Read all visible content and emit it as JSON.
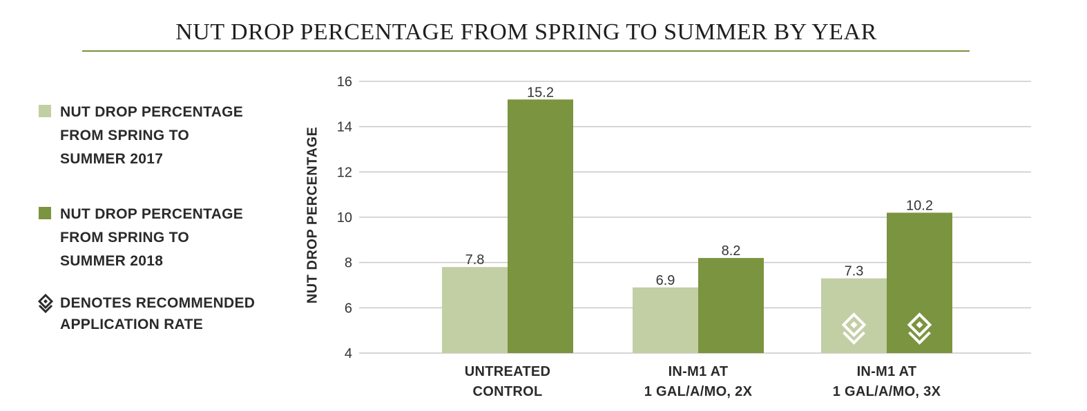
{
  "colors": {
    "series_2017": "#c2cea4",
    "series_2018": "#7b9440",
    "title_rule": "#7a8f3c",
    "grid": "#c8c8c8"
  },
  "legend": {
    "items": [
      {
        "lines": [
          "NUT DROP PERCENTAGE",
          "FROM SPRING TO",
          "SUMMER 2017"
        ]
      },
      {
        "lines": [
          "NUT DROP PERCENTAGE",
          "FROM SPRING TO",
          "SUMMER 2018"
        ]
      }
    ],
    "recommended": {
      "icon": "recommended-rate-icon",
      "lines": [
        "DENOTES RECOMMENDED",
        "APPLICATION RATE"
      ]
    }
  },
  "chart_data": {
    "type": "bar",
    "title": "NUT DROP PERCENTAGE FROM SPRING TO SUMMER BY YEAR",
    "xlabel": "",
    "ylabel": "NUT DROP PERCENTAGE",
    "ylim": [
      4,
      16
    ],
    "yticks": [
      "4",
      "6",
      "8",
      "10",
      "12",
      "14",
      "16"
    ],
    "grid": true,
    "legend_position": "left",
    "categories": [
      [
        "UNTREATED",
        "CONTROL"
      ],
      [
        "IN-M1 AT",
        "1 GAL/A/MO, 2X"
      ],
      [
        "IN-M1 AT",
        "1 GAL/A/MO, 3X"
      ]
    ],
    "series": [
      {
        "values": [
          7.8,
          6.9,
          7.3
        ],
        "labels": [
          "7.8",
          "6.9",
          "7.3"
        ],
        "recommended": [
          false,
          false,
          true
        ]
      },
      {
        "values": [
          15.2,
          8.2,
          10.2
        ],
        "labels": [
          "15.2",
          "8.2",
          "10.2"
        ],
        "recommended": [
          false,
          false,
          true
        ]
      }
    ]
  }
}
